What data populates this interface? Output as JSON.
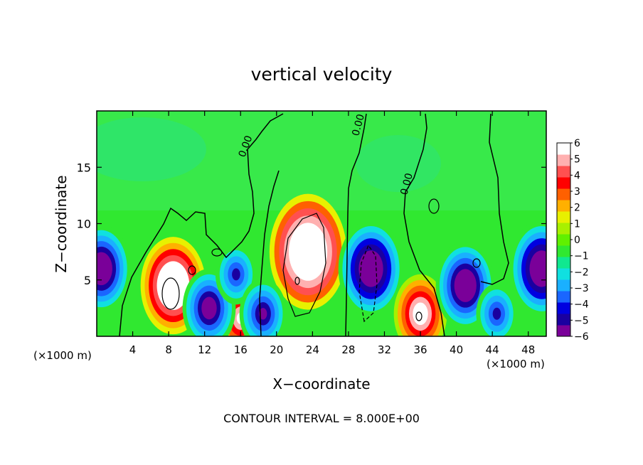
{
  "chart_data": {
    "type": "heatmap",
    "title": "vertical velocity",
    "xlabel": "X−coordinate",
    "ylabel": "Z−coordinate",
    "x_units_left": "(×1000 m)",
    "x_units_right": "(×1000 m)",
    "xlim": [
      0,
      50
    ],
    "ylim": [
      0,
      20
    ],
    "x_ticks": [
      4,
      8,
      12,
      16,
      20,
      24,
      28,
      32,
      36,
      40,
      44,
      48
    ],
    "y_ticks": [
      5,
      10,
      15
    ],
    "zero_contour_label": "0.00",
    "footer": "CONTOUR INTERVAL = 8.000E+00",
    "colorbar": {
      "min": -6,
      "max": 6,
      "ticks": [
        "6",
        "5",
        "4",
        "3",
        "2",
        "1",
        "0",
        "−1",
        "−2",
        "−3",
        "−4",
        "−5",
        "−6"
      ],
      "colors": [
        "#7a0099",
        "#1a00a0",
        "#0000e0",
        "#1a66ff",
        "#1ab0ff",
        "#10e0e0",
        "#10e890",
        "#30e830",
        "#60f000",
        "#a8f000",
        "#e8f000",
        "#ffb000",
        "#ff6000",
        "#ff0000",
        "#ff5050",
        "#ffb0b0",
        "#ffffff"
      ]
    },
    "features": [
      {
        "x": 8.5,
        "z": 4.5,
        "value": 9
      },
      {
        "x": 23.5,
        "z": 7.5,
        "value": 11
      },
      {
        "x": 30.5,
        "z": 6.0,
        "value": -9
      },
      {
        "x": 36.0,
        "z": 2.0,
        "value": 7
      },
      {
        "x": 16.0,
        "z": 1.6,
        "value": 6
      },
      {
        "x": 41.0,
        "z": 4.5,
        "value": -8
      },
      {
        "x": 49.5,
        "z": 6.0,
        "value": -9
      },
      {
        "x": 0.5,
        "z": 6.0,
        "value": -8
      },
      {
        "x": 12.5,
        "z": 2.5,
        "value": -7
      },
      {
        "x": 15.5,
        "z": 5.5,
        "value": -5
      },
      {
        "x": 18.5,
        "z": 2.0,
        "value": -6
      },
      {
        "x": 44.5,
        "z": 2.0,
        "value": -5
      }
    ]
  }
}
